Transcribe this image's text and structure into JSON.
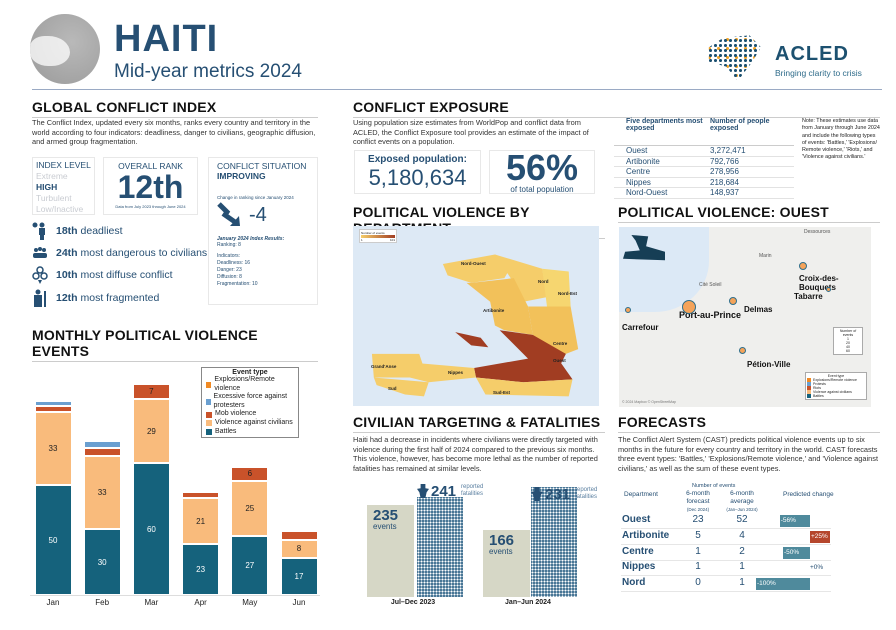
{
  "header": {
    "title": "HAITI",
    "subtitle": "Mid-year metrics 2024",
    "logo_name": "ACLED",
    "logo_tagline": "Bringing clarity to crisis"
  },
  "gci": {
    "title": "GLOBAL CONFLICT INDEX",
    "description": "The Conflict Index, updated every six months, ranks every country and territory in the world according to four indicators: deadliness, danger to civilians, geographic diffusion, and armed group fragmentation.",
    "index_level_label": "INDEX LEVEL",
    "levels": [
      "Extreme",
      "HIGH",
      "Turbulent",
      "Low/Inactive"
    ],
    "overall_rank_label": "OVERALL RANK",
    "overall_rank": "12th",
    "rank_note": "Data from July 2023 through June 2024",
    "situation_label": "CONFLICT SITUATION",
    "situation": "IMPROVING",
    "change_label": "Change in ranking since January 2024",
    "change": "-4",
    "jan_title": "January 2024 Index Results:",
    "jan_ranking": "Ranking: 8",
    "indicators_label": "Indicators:",
    "indicators": [
      "Deadliness: 16",
      "Danger: 23",
      "Diffusion: 8",
      "Fragmentation: 10"
    ],
    "stats": [
      {
        "rank": "18th",
        "text": "deadliest",
        "icon": "person-skull-icon"
      },
      {
        "rank": "24th",
        "text": "most dangerous to civilians",
        "icon": "crowd-icon"
      },
      {
        "rank": "10th",
        "text": "most diffuse conflict",
        "icon": "location-pins-icon"
      },
      {
        "rank": "12th",
        "text": "most fragmented",
        "icon": "armed-group-icon"
      }
    ]
  },
  "exposure": {
    "title": "CONFLICT EXPOSURE",
    "description": "Using population size estimates from WorldPop and conflict data from ACLED, the Conflict Exposure tool provides an estimate of the impact of conflict events on a population.",
    "exposed_label": "Exposed population:",
    "exposed_value": "5,180,634",
    "percent": "56%",
    "percent_label": "of total population",
    "table_headers": [
      "Five departments most exposed",
      "Number of people exposed"
    ],
    "rows": [
      [
        "Ouest",
        "3,272,471"
      ],
      [
        "Artibonite",
        "792,766"
      ],
      [
        "Centre",
        "278,956"
      ],
      [
        "Nippes",
        "218,684"
      ],
      [
        "Nord-Ouest",
        "148,937"
      ]
    ],
    "note": "Note: These estimates use data from January through June 2024 and include the following types of events: 'Battles,' 'Explosions/ Remote violence,' 'Riots,' and 'Violence against civilians.'"
  },
  "dept_map": {
    "title": "POLITICAL VIOLENCE BY DEPARTMENT",
    "legend_title": "Number of events",
    "legend_min": "1",
    "legend_max": "101",
    "departments": [
      "Nord-Ouest",
      "Nord",
      "Nord-Est",
      "Artibonite",
      "Centre",
      "Ouest",
      "Grand'Anse",
      "Nippes",
      "Sud",
      "Sud-Est"
    ]
  },
  "ouest_map": {
    "title": "POLITICAL VIOLENCE: OUEST",
    "places": [
      "Dessources",
      "Marin",
      "Cité Soleil",
      "Port-au-Prince",
      "Delmas",
      "Tabarre",
      "Croix-des-Bouquets",
      "Carrefour",
      "Pétion-Ville"
    ],
    "size_legend_title": "Number of events",
    "size_legend": [
      "1",
      "20",
      "40",
      "60"
    ],
    "type_legend_title": "Event type",
    "types": [
      "Explosions/Remote violence",
      "Protests",
      "Riots",
      "Violence against civilians",
      "Battles"
    ],
    "credit": "© 2024 Mapbox © OpenStreetMap"
  },
  "civilian": {
    "title": "CIVILIAN TARGETING & FATALITIES",
    "description": "Haiti had a decrease in incidents where civilians were directly targeted with violence during the first half of 2024 compared to the previous six months. This violence, however, has become more lethal as the number of reported fatalities has remained at similar levels.",
    "periods": [
      {
        "label": "Jul–Dec 2023",
        "events": "235",
        "events_label": "events",
        "fatalities": "241",
        "fat_label": "reported fatalities"
      },
      {
        "label": "Jan–Jun 2024",
        "events": "166",
        "events_label": "events",
        "fatalities": "231",
        "fat_label": "reported fatalities"
      }
    ]
  },
  "forecasts": {
    "title": "FORECASTS",
    "description": "The Conflict Alert System (CAST) predicts political violence events up to six months in the future for every country and territory in the world. CAST forecasts three event types: 'Battles,' 'Explosions/Remote violence,' and 'Violence against civilians,' as well as the sum of these event types.",
    "group_header": "Number of events",
    "headers": [
      "Department",
      "6-month forecast",
      "6-month average",
      "Predicted change"
    ],
    "subheaders": [
      "(Dec 2024)",
      "(Jan–Jun 2024)"
    ],
    "rows": [
      {
        "dept": "Ouest",
        "forecast": "23",
        "average": "52",
        "change": "-56%",
        "pct": -56
      },
      {
        "dept": "Artibonite",
        "forecast": "5",
        "average": "4",
        "change": "+25%",
        "pct": 25
      },
      {
        "dept": "Centre",
        "forecast": "1",
        "average": "2",
        "change": "-50%",
        "pct": -50
      },
      {
        "dept": "Nippes",
        "forecast": "1",
        "average": "1",
        "change": "+0%",
        "pct": 0
      },
      {
        "dept": "Nord",
        "forecast": "0",
        "average": "1",
        "change": "-100%",
        "pct": -100
      }
    ]
  },
  "chart_data": {
    "type": "bar",
    "stacked": true,
    "title": "MONTHLY POLITICAL VIOLENCE EVENTS",
    "categories": [
      "Jan",
      "Feb",
      "Mar",
      "Apr",
      "May",
      "Jun"
    ],
    "legend_title": "Event type",
    "legend_position": "top-right",
    "series": [
      {
        "name": "Battles",
        "color": "#15627c",
        "values": [
          50,
          30,
          60,
          23,
          27,
          17
        ]
      },
      {
        "name": "Violence against civilians",
        "color": "#f9bb7c",
        "values": [
          33,
          33,
          29,
          21,
          25,
          8
        ]
      },
      {
        "name": "Mob violence",
        "color": "#c9522a",
        "values": [
          3,
          4,
          7,
          3,
          6,
          4
        ]
      },
      {
        "name": "Excessive force against protesters",
        "color": "#6a9fd0",
        "values": [
          2,
          3,
          0,
          0,
          0,
          0
        ]
      },
      {
        "name": "Explosions/Remote violence",
        "color": "#f08a24",
        "values": [
          0,
          1,
          0,
          0,
          0,
          0
        ]
      }
    ],
    "legend_order": [
      "Explosions/Remote violence",
      "Excessive force against protesters",
      "Mob violence",
      "Violence against civilians",
      "Battles"
    ]
  }
}
